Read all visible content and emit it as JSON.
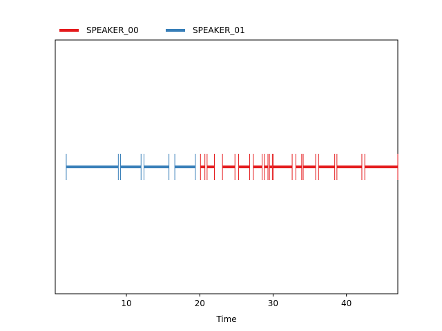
{
  "chart_data": {
    "type": "timeline",
    "xlabel": "Time",
    "xlim": [
      0.3,
      47
    ],
    "xticks": [
      10,
      20,
      30,
      40
    ],
    "legend_position": "top-left",
    "series": [
      {
        "name": "SPEAKER_00",
        "color": "#e41a1c",
        "segments": [
          [
            20.1,
            20.7
          ],
          [
            21.0,
            22.0
          ],
          [
            23.1,
            24.8
          ],
          [
            25.3,
            26.8
          ],
          [
            27.3,
            28.5
          ],
          [
            28.8,
            29.3
          ],
          [
            29.5,
            29.9
          ],
          [
            30.0,
            32.6
          ],
          [
            33.1,
            33.9
          ],
          [
            34.1,
            35.8
          ],
          [
            36.2,
            38.4
          ],
          [
            38.7,
            42.1
          ],
          [
            42.5,
            47.0
          ]
        ]
      },
      {
        "name": "SPEAKER_01",
        "color": "#377eb8",
        "segments": [
          [
            1.8,
            8.9
          ],
          [
            9.2,
            12.0
          ],
          [
            12.4,
            15.8
          ],
          [
            16.6,
            19.4
          ]
        ]
      }
    ]
  }
}
